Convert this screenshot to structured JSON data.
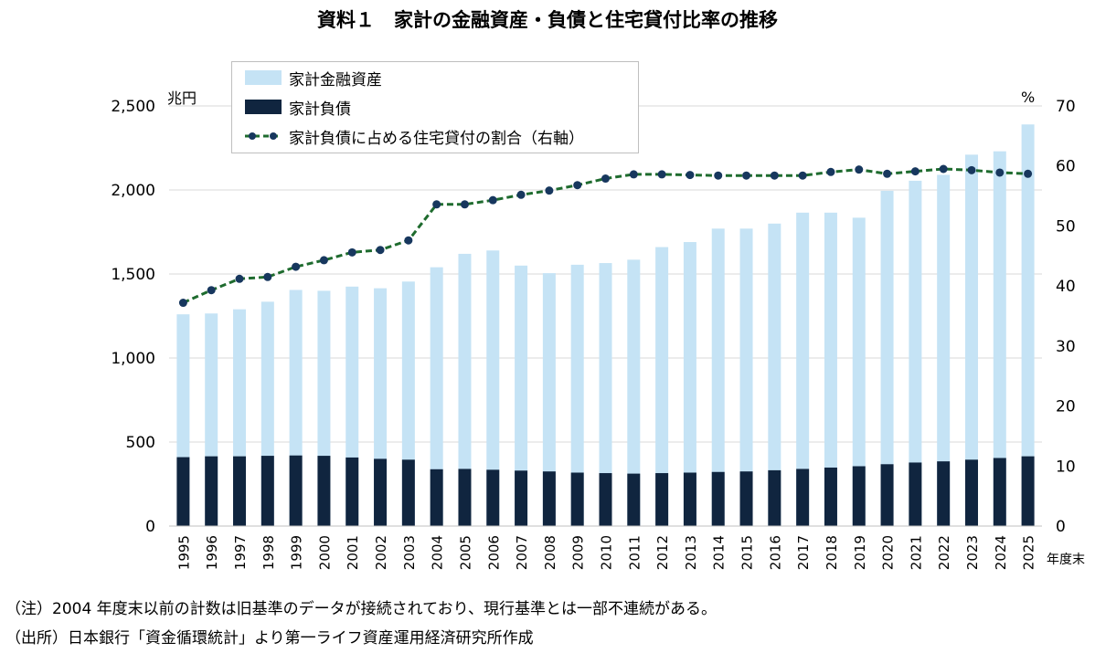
{
  "title": "資料１　家計の金融資産・負債と住宅貸付比率の推移",
  "notes": {
    "note1": "（注）2004 年度末以前の計数は旧基準のデータが接続されており、現行基準とは一部不連続がある。",
    "note2": "（出所）日本銀行「資金循環統計」より第一ライフ資産運用経済研究所作成"
  },
  "colors": {
    "assets": "#c5e3f5",
    "liabilities": "#10253f",
    "ratio": "#1e6b2e",
    "ratio_marker": "#17375e",
    "grid": "#d9d9d9"
  },
  "chart_data": {
    "type": "bar",
    "title": "資料１　家計の金融資産・負債と住宅貸付比率の推移",
    "xlabel": "年度末",
    "ylabel": "兆円",
    "y2label": "%",
    "ylim": [
      0,
      2500
    ],
    "y2lim": [
      0,
      70
    ],
    "yticks": [
      "0",
      "500",
      "1,000",
      "1,500",
      "2,000",
      "2,500"
    ],
    "y2ticks": [
      "0",
      "10",
      "20",
      "30",
      "40",
      "50",
      "60",
      "70"
    ],
    "grid": true,
    "legend_position": "top-center",
    "categories": [
      "1995",
      "1996",
      "1997",
      "1998",
      "1999",
      "2000",
      "2001",
      "2002",
      "2003",
      "2004",
      "2005",
      "2006",
      "2007",
      "2008",
      "2009",
      "2010",
      "2011",
      "2012",
      "2013",
      "2014",
      "2015",
      "2016",
      "2017",
      "2018",
      "2019",
      "2020",
      "2021",
      "2022",
      "2023",
      "2024",
      "2025"
    ],
    "series": [
      {
        "name": "家計金融資産",
        "type": "bar",
        "axis": "left",
        "values": [
          1260,
          1265,
          1290,
          1335,
          1405,
          1400,
          1425,
          1415,
          1455,
          1540,
          1620,
          1640,
          1550,
          1505,
          1555,
          1565,
          1585,
          1660,
          1690,
          1770,
          1770,
          1800,
          1865,
          1865,
          1835,
          1995,
          2055,
          2090,
          2210,
          2230,
          2390
        ]
      },
      {
        "name": "家計負債",
        "type": "bar",
        "axis": "left",
        "values": [
          410,
          415,
          415,
          418,
          420,
          418,
          408,
          400,
          395,
          338,
          340,
          335,
          330,
          325,
          318,
          315,
          312,
          315,
          318,
          322,
          325,
          332,
          340,
          348,
          356,
          368,
          378,
          385,
          395,
          405,
          415
        ]
      },
      {
        "name": "家計負債に占める住宅貸付の割合（右軸）",
        "type": "line",
        "axis": "right",
        "values": [
          37.2,
          39.3,
          41.2,
          41.5,
          43.2,
          44.3,
          45.6,
          46.0,
          47.6,
          53.6,
          53.6,
          54.3,
          55.2,
          55.9,
          56.8,
          57.9,
          58.6,
          58.6,
          58.5,
          58.4,
          58.4,
          58.4,
          58.4,
          59.0,
          59.4,
          58.7,
          59.1,
          59.5,
          59.3,
          58.9,
          58.7
        ]
      }
    ]
  }
}
